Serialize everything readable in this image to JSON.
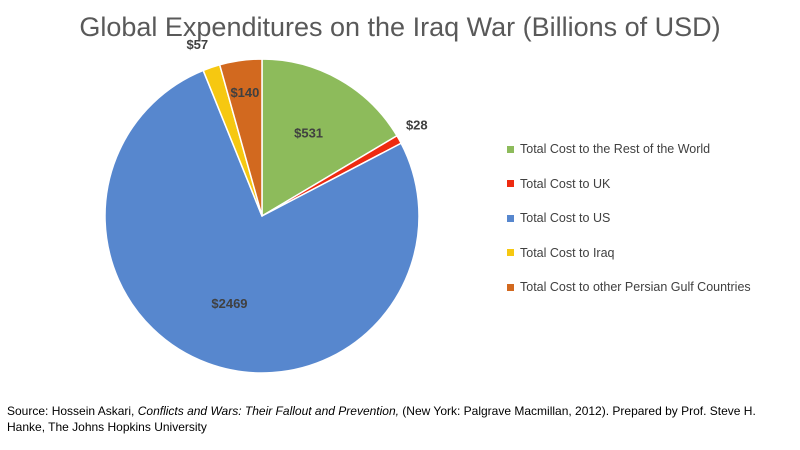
{
  "chart_data": {
    "type": "pie",
    "title": "Global Expenditures on the Iraq War (Billions of USD)",
    "slices": [
      {
        "name": "Total Cost to the Rest of the World",
        "value": 531,
        "label": "$531",
        "color": "#8DBB5B"
      },
      {
        "name": "Total Cost to UK",
        "value": 28,
        "label": "$28",
        "color": "#EE2A10"
      },
      {
        "name": "Total Cost to US",
        "value": 2469,
        "label": "$2469",
        "color": "#5787CE"
      },
      {
        "name": "Total Cost to Iraq",
        "value": 57,
        "label": "$57",
        "color": "#F6C811"
      },
      {
        "name": "Total Cost to other Persian Gulf Countries",
        "value": 140,
        "label": "$140",
        "color": "#D2691F"
      }
    ],
    "legend_position": "right"
  },
  "source": {
    "prefix": "Source: Hossein Askari, ",
    "book_title": "Conflicts and Wars: Their Fallout and Prevention,",
    "suffix": " (New York: Palgrave Macmillan, 2012). Prepared by Prof. Steve H. Hanke, The Johns Hopkins University"
  }
}
